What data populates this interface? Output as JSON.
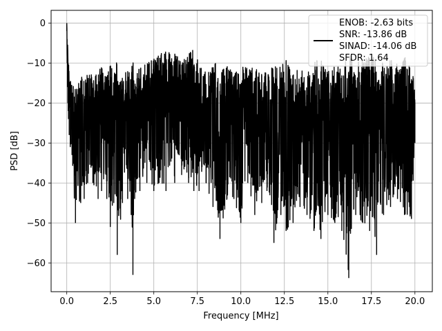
{
  "chart_data": {
    "type": "line",
    "title": "",
    "xlabel": "Frequency [MHz]",
    "ylabel": "PSD [dB]",
    "xlim": [
      -0.9,
      21.0
    ],
    "ylim": [
      -67.2,
      3.2
    ],
    "xticks": [
      0.0,
      2.5,
      5.0,
      7.5,
      10.0,
      12.5,
      15.0,
      17.5,
      20.0
    ],
    "xtick_labels": [
      "0.0",
      "2.5",
      "5.0",
      "7.5",
      "10.0",
      "12.5",
      "15.0",
      "17.5",
      "20.0"
    ],
    "yticks": [
      0,
      -10,
      -20,
      -30,
      -40,
      -50,
      -60
    ],
    "ytick_labels": [
      "0",
      "−10",
      "−20",
      "−30",
      "−40",
      "−50",
      "−60"
    ],
    "grid": true,
    "legend_position": "top-right",
    "legend_lines": [
      "ENOB: -2.63 bits",
      "SNR: -13.86 dB",
      "SINAD: -14.06 dB",
      "SFDR: 1.64"
    ],
    "series": [
      {
        "color": "#000000",
        "x": [
          0.0,
          0.02,
          0.04,
          0.06,
          0.08,
          0.1,
          0.14,
          0.2,
          0.3,
          0.5,
          0.8,
          1.0,
          1.2,
          1.5,
          1.8,
          2.0,
          2.3,
          2.5,
          2.7,
          2.9,
          3.2,
          3.5,
          3.7,
          3.8,
          3.9,
          4.2,
          4.6,
          5.0,
          5.3,
          5.7,
          6.2,
          6.6,
          7.0,
          7.3,
          7.6,
          8.0,
          8.4,
          8.8,
          9.2,
          9.6,
          10.0,
          10.4,
          10.8,
          11.2,
          11.5,
          11.9,
          12.3,
          12.6,
          13.0,
          13.4,
          13.8,
          14.2,
          14.6,
          15.0,
          15.4,
          15.8,
          16.2,
          16.6,
          17.0,
          17.4,
          17.8,
          18.2,
          18.6,
          19.0,
          19.4,
          19.8,
          20.0
        ],
        "upper": [
          0.0,
          -4,
          -6,
          -8,
          -10,
          -12,
          -15,
          -16,
          -18,
          -20,
          -18,
          -19,
          -16,
          -18,
          -17,
          -16,
          -18,
          -17,
          -18,
          -17,
          -18,
          -17,
          -18,
          -18,
          -17,
          -16,
          -15,
          -14,
          -13,
          -13,
          -13,
          -14,
          -13,
          -12,
          -15,
          -17,
          -16,
          -17,
          -16,
          -18,
          -17,
          -16,
          -17,
          -18,
          -17,
          -18,
          -17,
          -16,
          -18,
          -17,
          -18,
          -17,
          -16,
          -18,
          -17,
          -18,
          -17,
          -16,
          -16,
          -15,
          -17,
          -16,
          -15,
          -16,
          -15,
          -14,
          -20
        ],
        "lower": [
          -2,
          -10,
          -16,
          -20,
          -22,
          -24,
          -28,
          -31,
          -33,
          -50,
          -45,
          -44,
          -40,
          -40,
          -44,
          -42,
          -44,
          -51,
          -45,
          -58,
          -45,
          -44,
          -48,
          -63,
          -44,
          -42,
          -40,
          -42,
          -40,
          -42,
          -40,
          -38,
          -40,
          -42,
          -42,
          -40,
          -46,
          -54,
          -44,
          -44,
          -50,
          -40,
          -48,
          -45,
          -42,
          -55,
          -48,
          -52,
          -50,
          -46,
          -48,
          -52,
          -54,
          -48,
          -50,
          -52,
          -63.8,
          -48,
          -50,
          -52,
          -58,
          -48,
          -46,
          -44,
          -48,
          -49,
          -30
        ]
      }
    ]
  }
}
